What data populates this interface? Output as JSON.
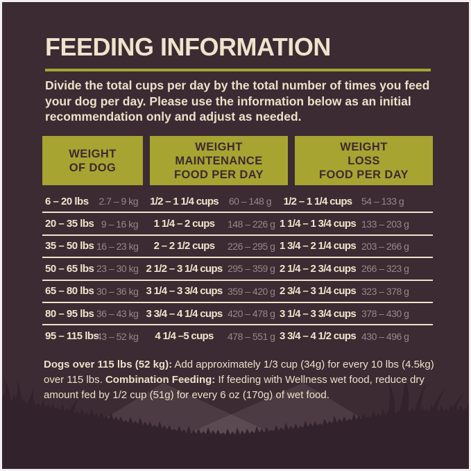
{
  "page": {
    "title": "FEEDING INFORMATION",
    "intro_lines": [
      "Divide the total cups per day by the total number of times you feed",
      "your dog per day. Please use the information below as an initial",
      "recommendation only and adjust as needed."
    ]
  },
  "table": {
    "headers": [
      {
        "lines": [
          "WEIGHT",
          "OF DOG"
        ]
      },
      {
        "lines": [
          "WEIGHT",
          "MAINTENANCE",
          "FOOD PER DAY"
        ]
      },
      {
        "lines": [
          "WEIGHT",
          "LOSS",
          "FOOD PER DAY"
        ]
      }
    ],
    "rows": [
      {
        "lbs": "6 – 20 lbs",
        "kg": "2.7 – 9 kg",
        "maint_cups": "1/2 – 1 1/4 cups",
        "maint_g": "60 – 148 g",
        "loss_cups": "1/2 – 1 1/4 cups",
        "loss_g": "54 – 133 g"
      },
      {
        "lbs": "20 – 35 lbs",
        "kg": "9 – 16 kg",
        "maint_cups": "1 1/4 – 2 cups",
        "maint_g": "148 – 226 g",
        "loss_cups": "1 1/4 – 1 3/4 cups",
        "loss_g": "133 – 203 g"
      },
      {
        "lbs": "35 – 50 lbs",
        "kg": "16 – 23 kg",
        "maint_cups": "2 – 2 1/2 cups",
        "maint_g": "226 – 295 g",
        "loss_cups": "1 3/4 – 2 1/4 cups",
        "loss_g": "203 – 266 g"
      },
      {
        "lbs": "50 – 65 lbs",
        "kg": "23 – 30 kg",
        "maint_cups": "2 1/2 – 3 1/4 cups",
        "maint_g": "295 – 359 g",
        "loss_cups": "2 1/4 – 2 3/4 cups",
        "loss_g": "266 – 323 g"
      },
      {
        "lbs": "65 – 80 lbs",
        "kg": "30 – 36 kg",
        "maint_cups": "3 1/4 – 3 3/4 cups",
        "maint_g": "359 – 420 g",
        "loss_cups": "2 3/4 – 3 1/4 cups",
        "loss_g": "323 – 378 g"
      },
      {
        "lbs": "80 – 95 lbs",
        "kg": "36 – 43 kg",
        "maint_cups": "3 3/4 – 4 1/4 cups",
        "maint_g": "420 – 478 g",
        "loss_cups": "3 1/4 – 3 3/4 cups",
        "loss_g": "378 – 430 g"
      },
      {
        "lbs": "95 – 115 lbs",
        "kg": "43 – 52 kg",
        "maint_cups": "4 1/4 –5 cups",
        "maint_g": "478 – 551 g",
        "loss_cups": "3 3/4 – 4 1/2 cups",
        "loss_g": "430 – 496 g"
      }
    ]
  },
  "footnote": {
    "l1_bold": "Dogs over 115 lbs (52 kg):",
    "l1_rest": " Add approximately 1/3 cup (34g) for every 10 lbs (4.5kg) over 115 lbs. ",
    "l2_bold": "Combination Feeding:",
    "l2_rest": " If feeding with Wellness wet food, reduce dry amount fed by 1/2 cup (51g) for every 6 oz (170g) of wet food."
  },
  "colors": {
    "background": "#3c2b32",
    "accent_olive": "#a7a431",
    "text_cream": "#efe3cc",
    "text_dim_metric": "#96888b",
    "grass_silhouette": "#31222c",
    "frame": "#f2f0f1"
  }
}
